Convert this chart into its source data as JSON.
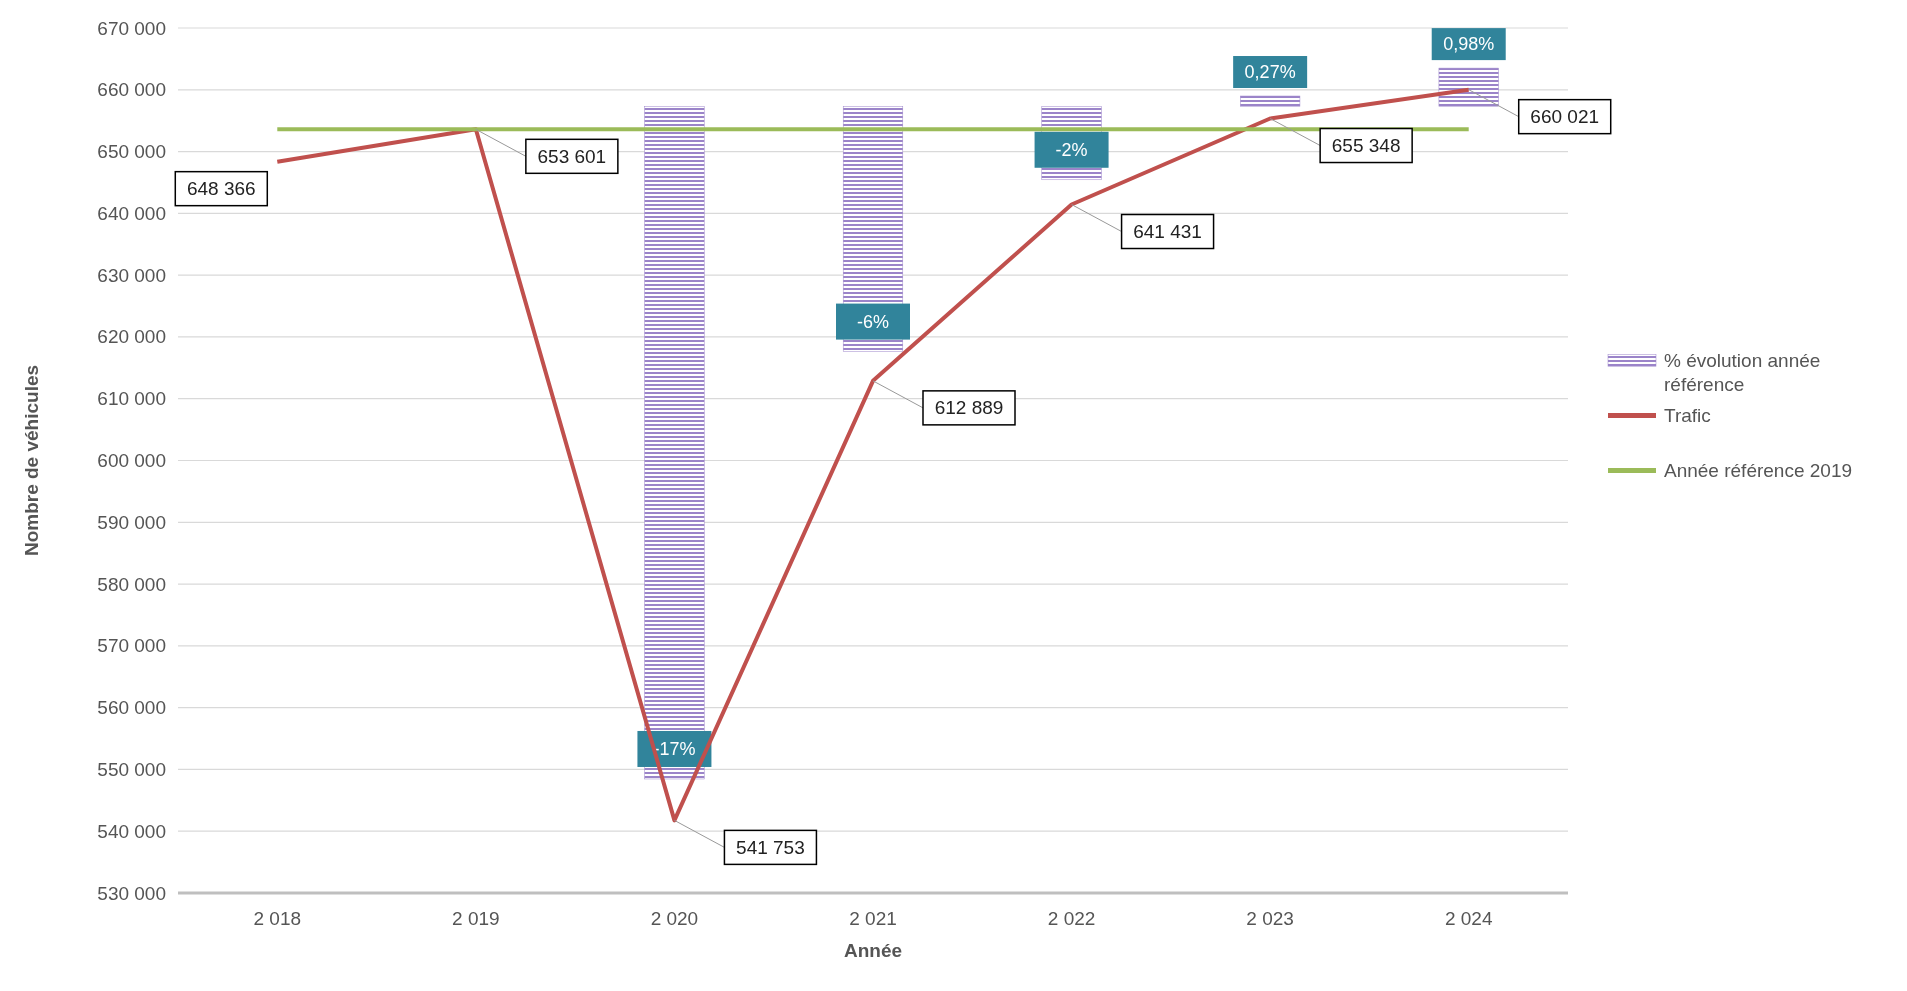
{
  "chart_data": {
    "type": "bar",
    "xlabel": "Année",
    "ylabel": "Nombre de véhicules",
    "categories": [
      "2 018",
      "2 019",
      "2 020",
      "2 021",
      "2 022",
      "2 023",
      "2 024"
    ],
    "series": [
      {
        "name": "% évolution année référence",
        "axis": "y2",
        "color": "#9b84c9",
        "values": [
          null,
          null,
          -17.1,
          -6.23,
          -1.86,
          0.27,
          0.98
        ],
        "value_labels": [
          null,
          null,
          "-17%",
          "-6%",
          "-2%",
          "0,27%",
          "0,98%"
        ]
      },
      {
        "name": "Trafic",
        "type": "line",
        "color": "#c0504d",
        "values": [
          648366,
          653601,
          541753,
          612889,
          641431,
          655348,
          660021
        ],
        "value_labels": [
          "648 366",
          "653 601",
          "541 753",
          "612 889",
          "641 431",
          "655 348",
          "660 021"
        ]
      },
      {
        "name": "Année référence 2019",
        "type": "line",
        "color": "#9bbb59",
        "values": [
          653601,
          653601,
          653601,
          653601,
          653601,
          653601,
          653601
        ]
      }
    ],
    "ylim": [
      530000,
      670000
    ],
    "yticks": [
      {
        "value": 530000,
        "label": "530 000"
      },
      {
        "value": 540000,
        "label": "540 000"
      },
      {
        "value": 550000,
        "label": "550 000"
      },
      {
        "value": 560000,
        "label": "560 000"
      },
      {
        "value": 570000,
        "label": "570 000"
      },
      {
        "value": 580000,
        "label": "580 000"
      },
      {
        "value": 590000,
        "label": "590 000"
      },
      {
        "value": 600000,
        "label": "600 000"
      },
      {
        "value": 610000,
        "label": "610 000"
      },
      {
        "value": 620000,
        "label": "620 000"
      },
      {
        "value": 630000,
        "label": "630 000"
      },
      {
        "value": 640000,
        "label": "640 000"
      },
      {
        "value": 650000,
        "label": "650 000"
      },
      {
        "value": 660000,
        "label": "660 000"
      },
      {
        "value": 670000,
        "label": "670 000"
      }
    ],
    "y2lim": [
      -20,
      2
    ],
    "grid": "y",
    "legend": "right",
    "marker": "none",
    "line_style": "solid"
  }
}
